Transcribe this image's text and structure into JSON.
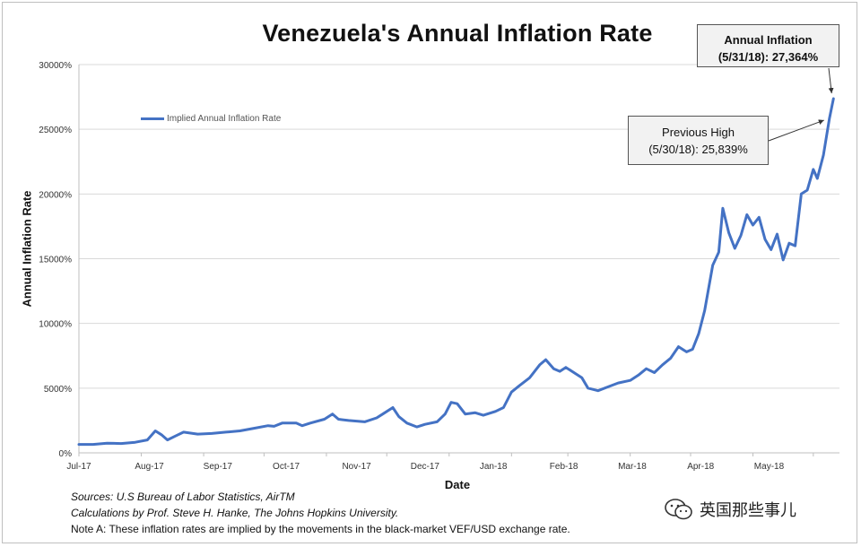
{
  "title": "Venezuela's Annual Inflation Rate",
  "chart_data": {
    "type": "line",
    "title": "Venezuela's Annual Inflation Rate",
    "xlabel": "Date",
    "ylabel": "Annual Inflation Rate",
    "ylim": [
      0,
      30000
    ],
    "yticks": [
      "0%",
      "5000%",
      "10000%",
      "15000%",
      "20000%",
      "25000%",
      "30000%"
    ],
    "xticks": [
      "Jul-17",
      "Aug-17",
      "Sep-17",
      "Oct-17",
      "Nov-17",
      "Dec-17",
      "Jan-18",
      "Feb-18",
      "Mar-18",
      "Apr-18",
      "May-18"
    ],
    "grid": "horizontal",
    "legend_position": "top-left",
    "series": [
      {
        "name": "Implied Annual Inflation Rate",
        "color": "#4472c4",
        "points": [
          [
            "2017-07-01",
            650
          ],
          [
            "2017-07-08",
            650
          ],
          [
            "2017-07-15",
            750
          ],
          [
            "2017-07-22",
            720
          ],
          [
            "2017-07-29",
            820
          ],
          [
            "2017-08-04",
            1000
          ],
          [
            "2017-08-08",
            1700
          ],
          [
            "2017-08-11",
            1400
          ],
          [
            "2017-08-14",
            1000
          ],
          [
            "2017-08-18",
            1300
          ],
          [
            "2017-08-22",
            1600
          ],
          [
            "2017-08-29",
            1450
          ],
          [
            "2017-09-05",
            1500
          ],
          [
            "2017-09-12",
            1600
          ],
          [
            "2017-09-19",
            1700
          ],
          [
            "2017-09-26",
            1900
          ],
          [
            "2017-10-03",
            2100
          ],
          [
            "2017-10-06",
            2050
          ],
          [
            "2017-10-10",
            2300
          ],
          [
            "2017-10-17",
            2300
          ],
          [
            "2017-10-20",
            2100
          ],
          [
            "2017-10-24",
            2300
          ],
          [
            "2017-10-31",
            2600
          ],
          [
            "2017-11-04",
            3000
          ],
          [
            "2017-11-07",
            2600
          ],
          [
            "2017-11-12",
            2500
          ],
          [
            "2017-11-20",
            2400
          ],
          [
            "2017-11-26",
            2700
          ],
          [
            "2017-11-29",
            3000
          ],
          [
            "2017-12-04",
            3500
          ],
          [
            "2017-12-07",
            2800
          ],
          [
            "2017-12-11",
            2300
          ],
          [
            "2017-12-16",
            2000
          ],
          [
            "2017-12-20",
            2200
          ],
          [
            "2017-12-26",
            2400
          ],
          [
            "2017-12-30",
            3000
          ],
          [
            "2018-01-02",
            3900
          ],
          [
            "2018-01-05",
            3800
          ],
          [
            "2018-01-09",
            3000
          ],
          [
            "2018-01-14",
            3100
          ],
          [
            "2018-01-18",
            2900
          ],
          [
            "2018-01-24",
            3200
          ],
          [
            "2018-01-28",
            3500
          ],
          [
            "2018-02-01",
            4700
          ],
          [
            "2018-02-05",
            5200
          ],
          [
            "2018-02-10",
            5800
          ],
          [
            "2018-02-15",
            6800
          ],
          [
            "2018-02-18",
            7200
          ],
          [
            "2018-02-22",
            6500
          ],
          [
            "2018-02-25",
            6300
          ],
          [
            "2018-02-28",
            6600
          ],
          [
            "2018-03-04",
            6200
          ],
          [
            "2018-03-08",
            5800
          ],
          [
            "2018-03-11",
            5000
          ],
          [
            "2018-03-16",
            4800
          ],
          [
            "2018-03-21",
            5100
          ],
          [
            "2018-03-26",
            5400
          ],
          [
            "2018-04-01",
            5600
          ],
          [
            "2018-04-05",
            6000
          ],
          [
            "2018-04-09",
            6500
          ],
          [
            "2018-04-13",
            6200
          ],
          [
            "2018-04-17",
            6800
          ],
          [
            "2018-04-21",
            7300
          ],
          [
            "2018-04-25",
            8200
          ],
          [
            "2018-04-29",
            7800
          ],
          [
            "2018-05-02",
            8000
          ],
          [
            "2018-05-05",
            9200
          ],
          [
            "2018-05-08",
            11000
          ],
          [
            "2018-05-12",
            14500
          ],
          [
            "2018-05-15",
            15500
          ],
          [
            "2018-05-17",
            18900
          ],
          [
            "2018-05-20",
            17000
          ],
          [
            "2018-05-23",
            15800
          ],
          [
            "2018-05-26",
            16800
          ],
          [
            "2018-05-29",
            18400
          ],
          [
            "2018-06-01",
            17600
          ],
          [
            "2018-06-04",
            18200
          ],
          [
            "2018-06-07",
            16500
          ],
          [
            "2018-06-10",
            15700
          ],
          [
            "2018-06-13",
            16900
          ],
          [
            "2018-06-16",
            14900
          ],
          [
            "2018-06-19",
            16200
          ],
          [
            "2018-06-22",
            16000
          ],
          [
            "2018-06-25",
            20000
          ],
          [
            "2018-06-28",
            20300
          ],
          [
            "2018-07-01",
            21900
          ],
          [
            "2018-07-03",
            21200
          ],
          [
            "2018-07-06",
            23000
          ],
          [
            "2018-07-09",
            25839
          ],
          [
            "2018-07-11",
            27364
          ]
        ]
      }
    ],
    "annotations": [
      {
        "lines": [
          "Annual Inflation",
          "(5/31/18): 27,364%"
        ],
        "target": [
          "2018-07-11",
          27364
        ]
      },
      {
        "lines": [
          "Previous High",
          "(5/30/18): 25,839%"
        ],
        "target": [
          "2018-07-09",
          25839
        ]
      }
    ]
  },
  "notes": {
    "sources": "Sources: U.S Bureau of Labor Statistics, AirTM",
    "calculations": "Calculations by Prof. Steve H. Hanke, The Johns Hopkins University.",
    "note_a": "Note A: These inflation rates are implied by the movements in the black-market VEF/USD exchange rate."
  },
  "watermark": {
    "text": "英国那些事儿",
    "icon": "wechat-icon"
  }
}
